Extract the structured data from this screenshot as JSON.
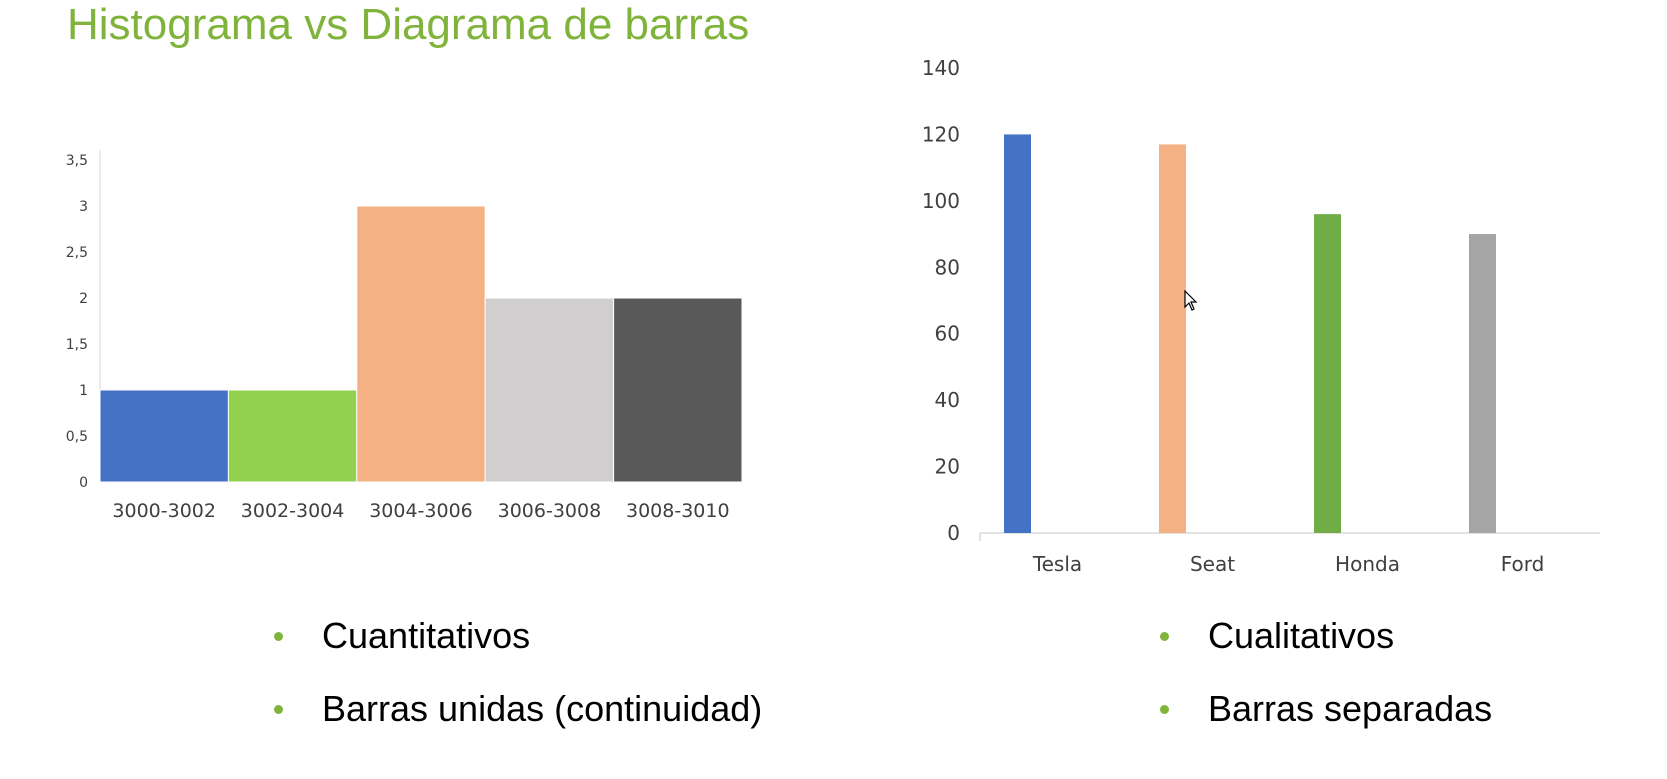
{
  "slide": {
    "title": "Histograma vs Diagrama de barras",
    "accent_color": "#7fb33a"
  },
  "left_bullets": [
    "Cuantitativos",
    "Barras unidas (continuidad)"
  ],
  "right_bullets": [
    "Cualitativos",
    "Barras separadas"
  ],
  "chart_data": [
    {
      "type": "bar",
      "variant": "histogram",
      "categories": [
        "3000-3002",
        "3002-3004",
        "3004-3006",
        "3006-3008",
        "3008-3010"
      ],
      "values": [
        1,
        1,
        3,
        2,
        2
      ],
      "colors": [
        "#4472c4",
        "#92d050",
        "#f4b183",
        "#d0cece",
        "#595959"
      ],
      "ylim": [
        0,
        3.5
      ],
      "yticks": [
        "0",
        "0,5",
        "1",
        "1,5",
        "2",
        "2,5",
        "3",
        "3,5"
      ],
      "title": "",
      "xlabel": "",
      "ylabel": "",
      "grid": false,
      "legend": "none"
    },
    {
      "type": "bar",
      "categories": [
        "Tesla",
        "Seat",
        "Honda",
        "Ford"
      ],
      "values": [
        120,
        117,
        96,
        90
      ],
      "colors": [
        "#4472c4",
        "#f4b183",
        "#70ad47",
        "#a5a5a5"
      ],
      "ylim": [
        0,
        140
      ],
      "yticks": [
        "0",
        "20",
        "40",
        "60",
        "80",
        "100",
        "120",
        "140"
      ],
      "title": "",
      "xlabel": "",
      "ylabel": "",
      "grid": false,
      "legend": "none"
    }
  ]
}
